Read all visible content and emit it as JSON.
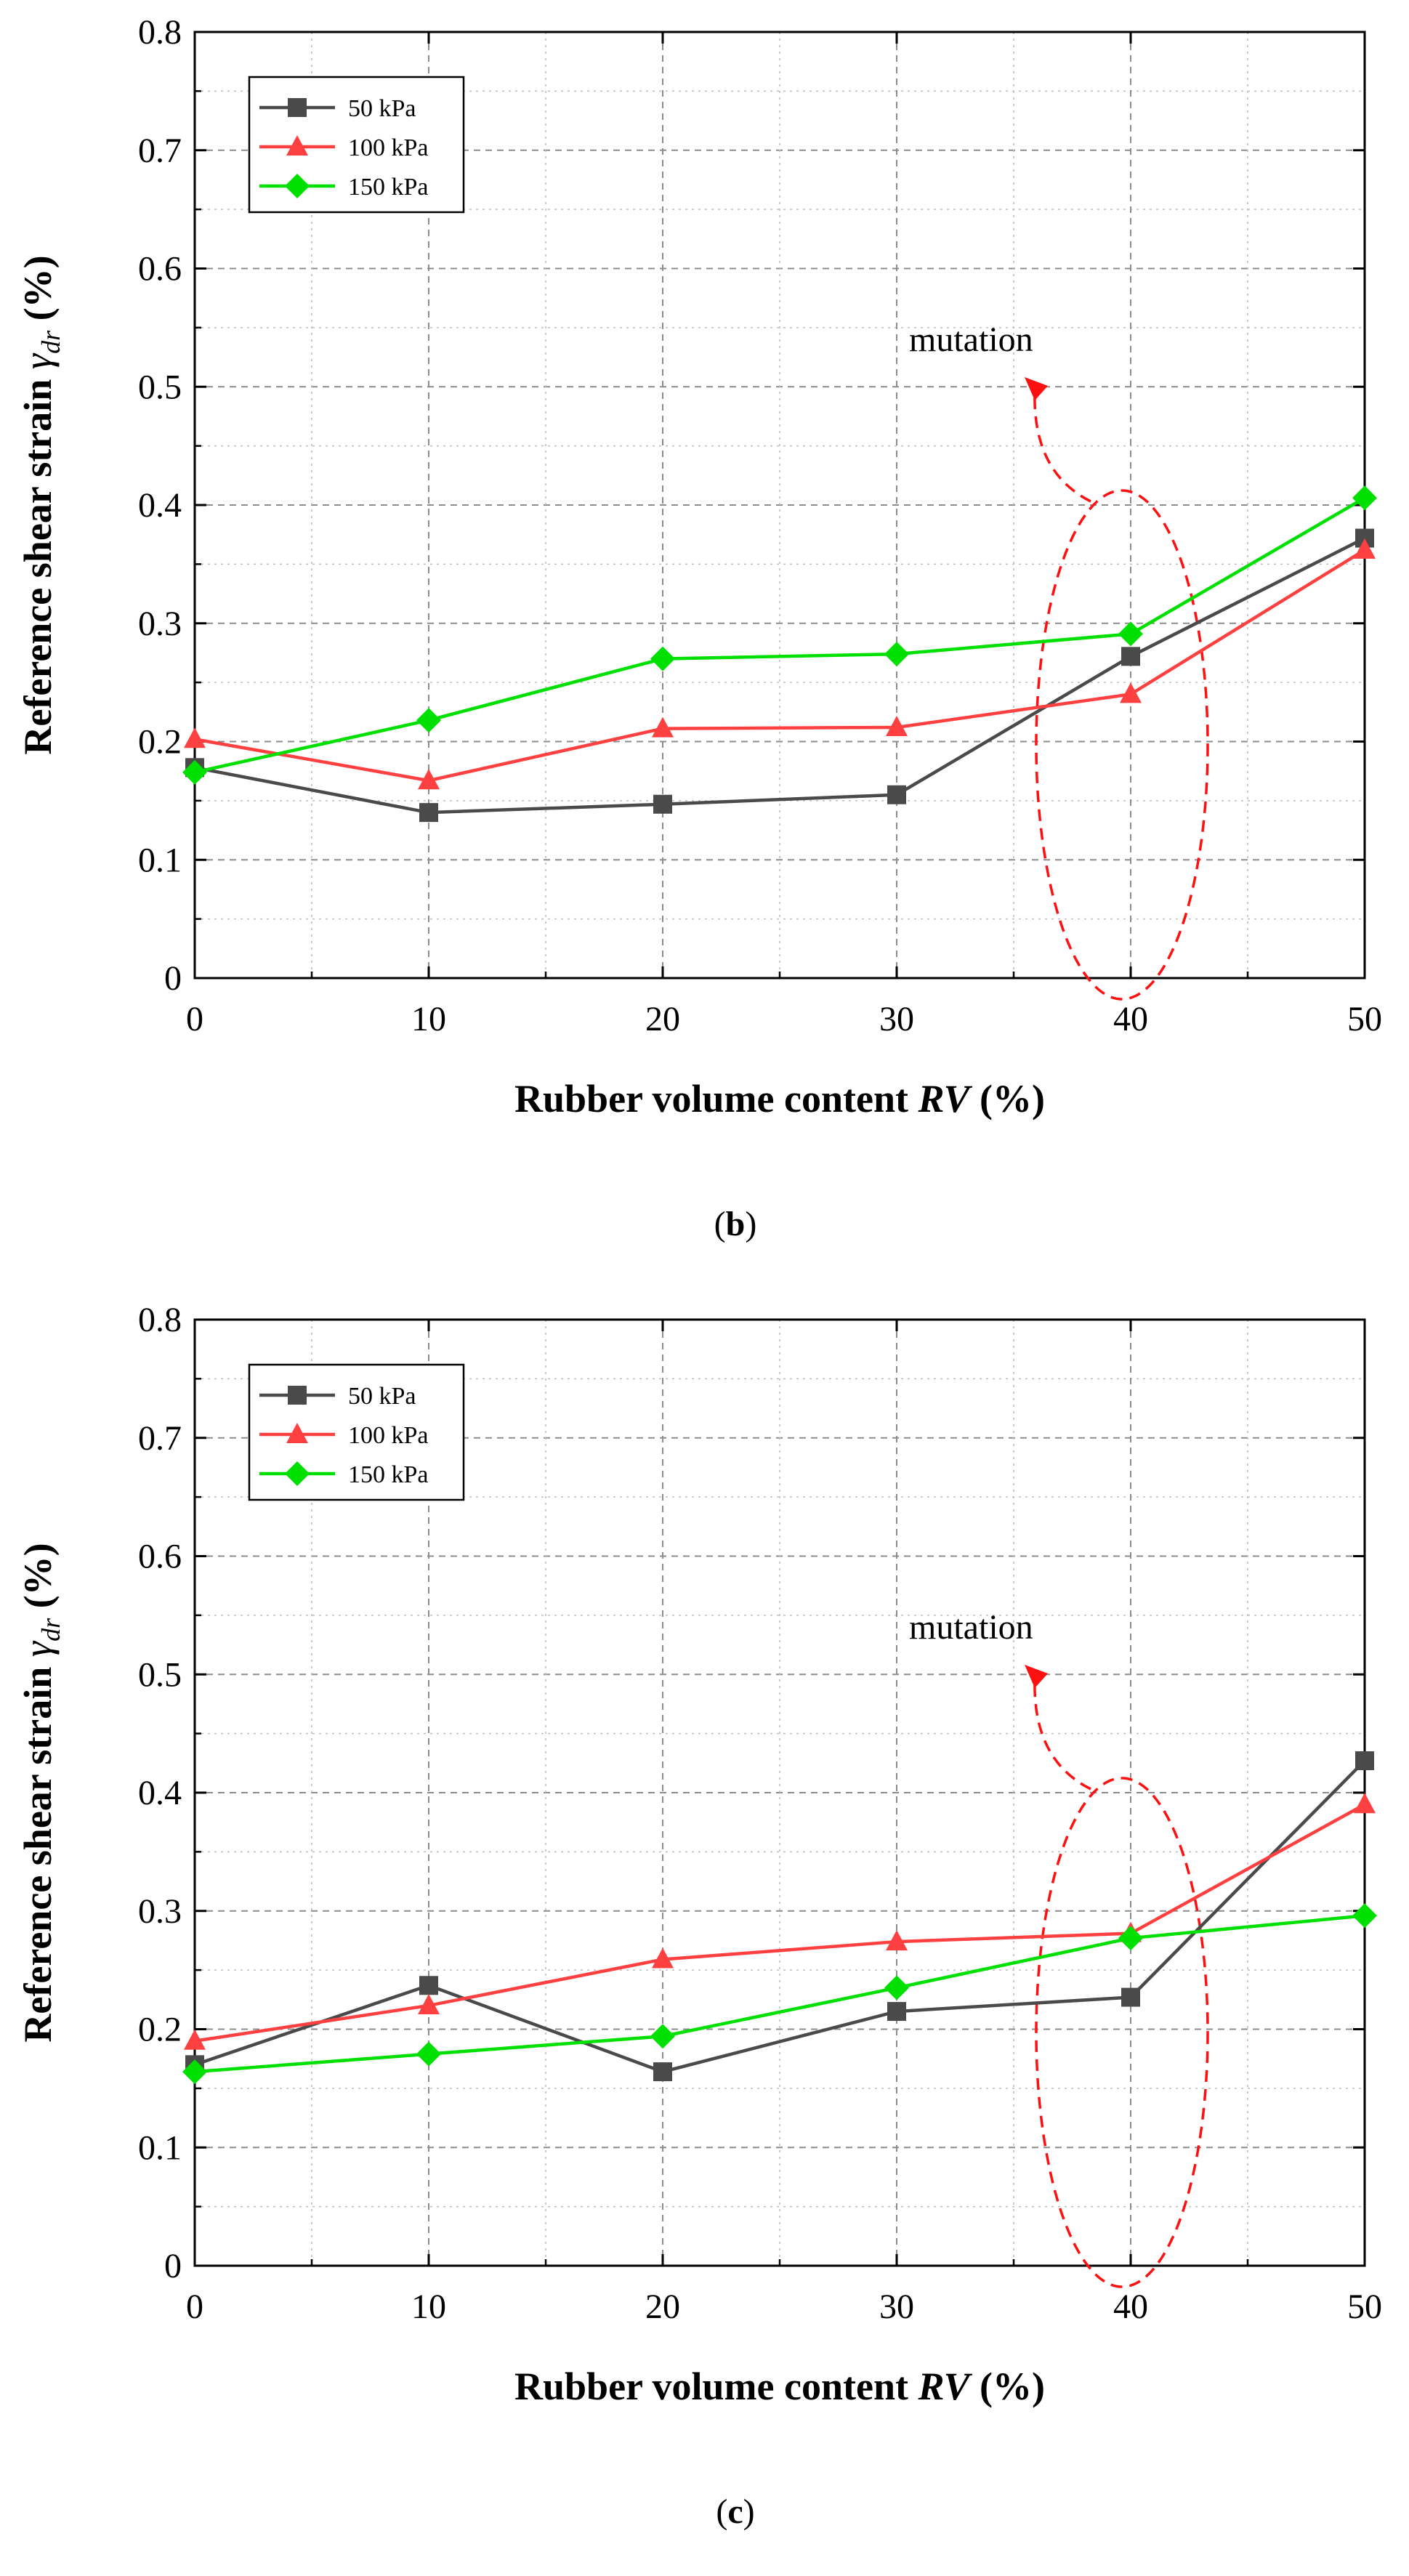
{
  "colors": {
    "series_50": "#4a4a4a",
    "series_100": "#ff4040",
    "series_150": "#00e000",
    "annotation": "#ff1010",
    "grid": "#8c8c8c"
  },
  "chart_data": [
    {
      "type": "line",
      "panel_label": "b",
      "title": "",
      "xlabel_text": "Rubber volume content ",
      "xlabel_var": "RV",
      "xlabel_unit": " (%)",
      "ylabel_text": "Reference shear strain ",
      "ylabel_var": "γ",
      "ylabel_sub": "dr",
      "ylabel_unit": " (%)",
      "x": [
        0,
        10,
        20,
        30,
        40,
        50
      ],
      "xlim": [
        0,
        50
      ],
      "ylim": [
        0,
        0.8
      ],
      "xticks": [
        "0",
        "10",
        "20",
        "30",
        "40",
        "50"
      ],
      "yticks": [
        "0",
        "0.1",
        "0.2",
        "0.3",
        "0.4",
        "0.5",
        "0.6",
        "0.7",
        "0.8"
      ],
      "grid": true,
      "legend_position": "top-left",
      "series": [
        {
          "name": "50 kPa",
          "marker": "square",
          "color": "#4a4a4a",
          "values": [
            0.178,
            0.14,
            0.147,
            0.155,
            0.272,
            0.372
          ]
        },
        {
          "name": "100 kPa",
          "marker": "triangle",
          "color": "#ff4040",
          "values": [
            0.202,
            0.167,
            0.211,
            0.212,
            0.24,
            0.362
          ]
        },
        {
          "name": "150 kPa",
          "marker": "diamond",
          "color": "#00e000",
          "values": [
            0.174,
            0.218,
            0.27,
            0.274,
            0.291,
            0.406
          ]
        }
      ],
      "annotation": {
        "text": "mutation",
        "target_x": 40
      }
    },
    {
      "type": "line",
      "panel_label": "c",
      "title": "",
      "xlabel_text": "Rubber volume content ",
      "xlabel_var": "RV",
      "xlabel_unit": " (%)",
      "ylabel_text": "Reference shear strain ",
      "ylabel_var": "γ",
      "ylabel_sub": "dr",
      "ylabel_unit": " (%)",
      "x": [
        0,
        10,
        20,
        30,
        40,
        50
      ],
      "xlim": [
        0,
        50
      ],
      "ylim": [
        0,
        0.8
      ],
      "xticks": [
        "0",
        "10",
        "20",
        "30",
        "40",
        "50"
      ],
      "yticks": [
        "0",
        "0.1",
        "0.2",
        "0.3",
        "0.4",
        "0.5",
        "0.6",
        "0.7",
        "0.8"
      ],
      "grid": true,
      "legend_position": "top-left",
      "series": [
        {
          "name": "50 kPa",
          "marker": "square",
          "color": "#4a4a4a",
          "values": [
            0.17,
            0.237,
            0.164,
            0.215,
            0.227,
            0.427
          ]
        },
        {
          "name": "100 kPa",
          "marker": "triangle",
          "color": "#ff4040",
          "values": [
            0.19,
            0.22,
            0.259,
            0.274,
            0.281,
            0.39
          ]
        },
        {
          "name": "150 kPa",
          "marker": "diamond",
          "color": "#00e000",
          "values": [
            0.164,
            0.179,
            0.194,
            0.235,
            0.277,
            0.296
          ]
        }
      ],
      "annotation": {
        "text": "mutation",
        "target_x": 40
      }
    }
  ]
}
